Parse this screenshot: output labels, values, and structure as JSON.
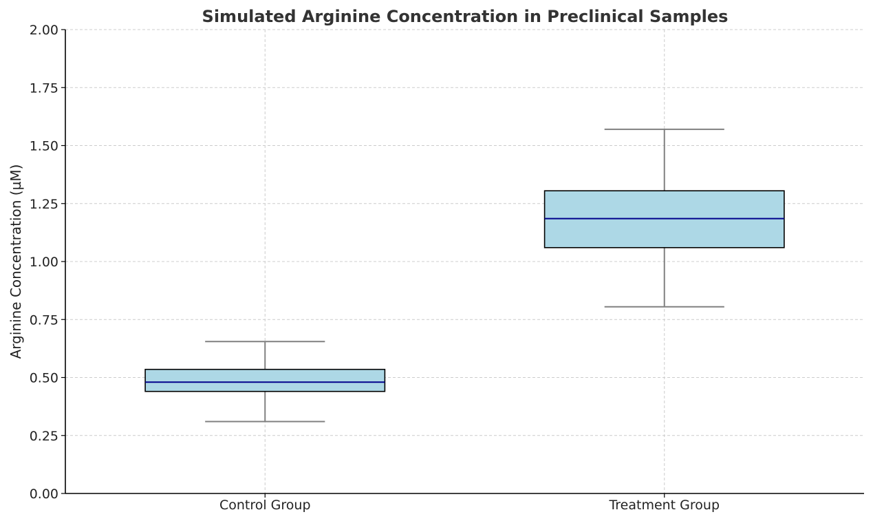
{
  "chart_data": {
    "type": "box",
    "title": "Simulated Arginine Concentration in Preclinical Samples",
    "xlabel": "",
    "ylabel": "Arginine Concentration (µM)",
    "ylim": [
      0,
      2.0
    ],
    "yticks": [
      0.0,
      0.25,
      0.5,
      0.75,
      1.0,
      1.25,
      1.5,
      1.75,
      2.0
    ],
    "ytick_labels": [
      "0.00",
      "0.25",
      "0.50",
      "0.75",
      "1.00",
      "1.25",
      "1.50",
      "1.75",
      "2.00"
    ],
    "grid": true,
    "categories": [
      "Control Group",
      "Treatment Group"
    ],
    "boxes": [
      {
        "category": "Control Group",
        "whisker_low": 0.31,
        "q1": 0.44,
        "median": 0.48,
        "q3": 0.535,
        "whisker_high": 0.655
      },
      {
        "category": "Treatment Group",
        "whisker_low": 0.805,
        "q1": 1.06,
        "median": 1.185,
        "q3": 1.305,
        "whisker_high": 1.57
      }
    ],
    "colors": {
      "box_fill": "#add8e6",
      "box_edge": "#000000",
      "median": "#00008b",
      "whisker": "#808080"
    }
  }
}
